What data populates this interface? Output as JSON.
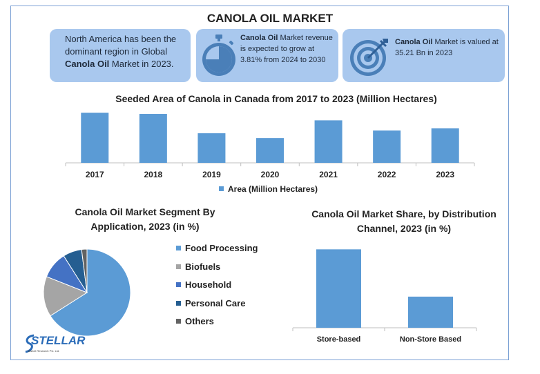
{
  "title": "CANOLA OIL MARKET",
  "cards": {
    "c1": {
      "part1": "North America has been the dominant region in Global ",
      "bold": "Canola Oil",
      "part2": " Market in 2023."
    },
    "c2": {
      "bold": "Canola Oil",
      "part2": " Market revenue is expected to grow at 3.81% from 2024 to 2030"
    },
    "c3": {
      "bold": "Canola Oil",
      "part2": " Market is valued at 35.21 Bn in 2023"
    }
  },
  "icons": {
    "c2": "stopwatch-icon",
    "c3": "target-icon"
  },
  "colors": {
    "bar": "#5b9bd5",
    "card": "#a9c8ee",
    "frame": "#7aa0d4"
  },
  "logo": {
    "text": "STELLAR",
    "sub": "Market Research Pvt. Ltd."
  },
  "chart_data": [
    {
      "type": "bar",
      "title": "Seeded Area of Canola in Canada from 2017 to 2023 (Million Hectares)",
      "categories": [
        "2017",
        "2018",
        "2019",
        "2020",
        "2021",
        "2022",
        "2023"
      ],
      "series": [
        {
          "name": "Area (Million Hectares)",
          "values": [
            9.3,
            9.1,
            5.5,
            4.6,
            7.9,
            6.0,
            6.4
          ]
        }
      ],
      "ylim": [
        0,
        10
      ],
      "legend": "bottom",
      "grid": false,
      "color": "#5b9bd5"
    },
    {
      "type": "pie",
      "title": "Canola Oil Market Segment By Application, 2023 (in %)",
      "labels": [
        "Food Processing",
        "Biofuels",
        "Household",
        "Personal Care",
        "Others"
      ],
      "values": [
        66,
        15,
        10,
        7,
        2
      ],
      "colors": [
        "#5b9bd5",
        "#a5a5a5",
        "#4472c4",
        "#255e91",
        "#636363"
      ],
      "legend": "right"
    },
    {
      "type": "bar",
      "title": "Canola Oil Market Share, by Distribution Channel, 2023 (in %)",
      "categories": [
        "Store-based",
        "Non-Store Based"
      ],
      "values": [
        68,
        27
      ],
      "ylim": [
        0,
        70
      ],
      "color": "#5b9bd5",
      "grid": false
    }
  ]
}
